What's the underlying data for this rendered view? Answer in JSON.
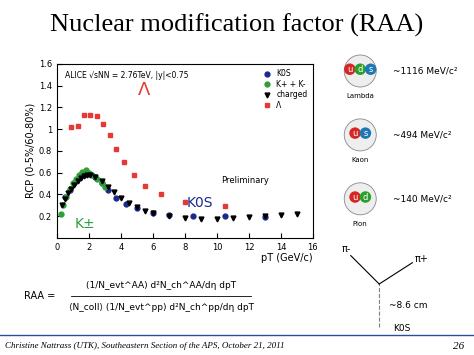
{
  "chart_data": {
    "type": "scatter",
    "title": "ALICE √sNN = 2.76TeV, |y|<0.75",
    "x_label": "pT (GeV/c)",
    "y_label": "RCP (0-5%/60-80%)",
    "xlim": [
      0,
      16
    ],
    "xticks": [
      0,
      2,
      4,
      6,
      8,
      10,
      12,
      14,
      16
    ],
    "ylim": [
      0,
      1.6
    ],
    "yticks": [
      0.2,
      0.4,
      0.6,
      0.8,
      1,
      1.2,
      1.4,
      1.6
    ],
    "grid": false,
    "legend": "upper right",
    "annotations": [
      "Λ",
      "K0S",
      "K±",
      "Preliminary"
    ],
    "series": [
      {
        "name": "K0S",
        "color": "#1a2a8c",
        "marker": "circle",
        "x": [
          0.5,
          0.8,
          1.1,
          1.4,
          1.7,
          2.0,
          2.4,
          2.8,
          3.2,
          3.7,
          4.3,
          5.0,
          6.0,
          7.0,
          8.5,
          10.5,
          13.0
        ],
        "values": [
          0.38,
          0.44,
          0.5,
          0.55,
          0.58,
          0.59,
          0.56,
          0.5,
          0.44,
          0.37,
          0.31,
          0.27,
          0.23,
          0.21,
          0.2,
          0.2,
          0.19
        ]
      },
      {
        "name": "K+ + K-",
        "color": "#2e9e3a",
        "marker": "circle",
        "x": [
          0.25,
          0.4,
          0.6,
          0.8,
          1.0,
          1.2,
          1.4,
          1.6,
          1.8,
          2.0,
          2.2,
          2.5,
          2.8,
          3.0
        ],
        "values": [
          0.22,
          0.3,
          0.38,
          0.45,
          0.5,
          0.54,
          0.58,
          0.61,
          0.62,
          0.6,
          0.58,
          0.54,
          0.5,
          0.47
        ]
      },
      {
        "name": "charged",
        "color": "#000000",
        "marker": "triangle",
        "x": [
          0.3,
          0.5,
          0.7,
          0.9,
          1.1,
          1.3,
          1.5,
          1.7,
          1.9,
          2.1,
          2.4,
          2.8,
          3.2,
          3.6,
          4.0,
          4.5,
          5.0,
          5.5,
          6.0,
          7.0,
          8.0,
          9.0,
          10.0,
          11.0,
          12.0,
          13.0,
          14.0,
          15.0
        ],
        "values": [
          0.3,
          0.36,
          0.41,
          0.45,
          0.49,
          0.52,
          0.55,
          0.57,
          0.58,
          0.58,
          0.56,
          0.52,
          0.47,
          0.42,
          0.37,
          0.32,
          0.28,
          0.25,
          0.23,
          0.2,
          0.18,
          0.17,
          0.17,
          0.18,
          0.19,
          0.2,
          0.21,
          0.22
        ]
      },
      {
        "name": "Λ",
        "color": "#e53935",
        "marker": "square",
        "x": [
          0.9,
          1.3,
          1.7,
          2.1,
          2.5,
          2.9,
          3.3,
          3.7,
          4.2,
          4.8,
          5.5,
          6.5,
          8.0,
          10.5
        ],
        "values": [
          1.02,
          1.03,
          1.13,
          1.13,
          1.12,
          1.05,
          0.95,
          0.82,
          0.7,
          0.58,
          0.48,
          0.4,
          0.33,
          0.29
        ]
      }
    ]
  },
  "slide": {
    "title": "Nuclear modification factor (RAA)",
    "formula": {
      "lhs": "RAA =",
      "numerator": "(1/N_evt^AA) d²N_ch^AA/dη dpT",
      "denominator": "⟨N_coll⟩ (1/N_evt^pp) d²N_ch^pp/dη dpT"
    },
    "particles": [
      {
        "name": "Lambda",
        "mass": "~1116 MeV/c²",
        "quarks": [
          "u",
          "d",
          "s"
        ]
      },
      {
        "name": "Kaon",
        "mass": "~494 MeV/c²",
        "quarks": [
          "u",
          "s"
        ]
      },
      {
        "name": "Pion",
        "mass": "~140 MeV/c²",
        "quarks": [
          "u",
          "d"
        ]
      }
    ],
    "decay": {
      "parent": "K0S",
      "daughters": [
        "π-",
        "π+"
      ],
      "length": "~8.6 cm"
    },
    "footer": "Christine Nattrass (UTK), Southeastern Section of the APS, October 21, 2011",
    "page": "26"
  }
}
